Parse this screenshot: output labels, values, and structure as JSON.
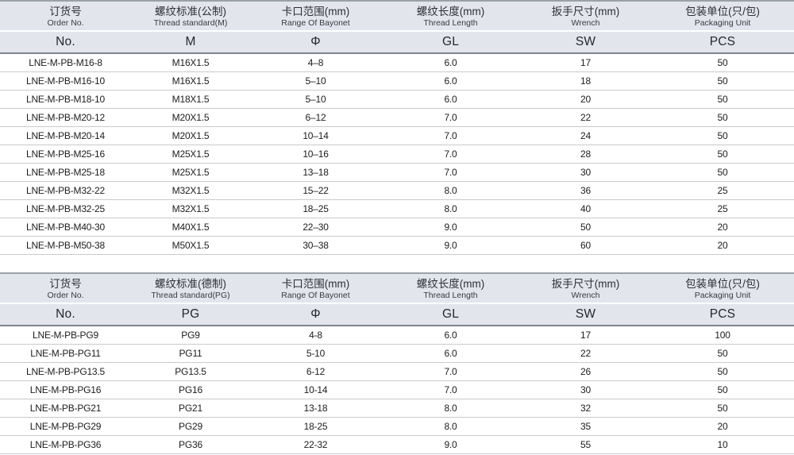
{
  "colors": {
    "header_bg": "#e2e6ec",
    "header_border_top": "#9ba1a9",
    "header_border_bottom": "#7e848c",
    "row_divider": "#c8cace",
    "data_text": "#1c1d1f"
  },
  "tables": [
    {
      "name": "metric-thread-table",
      "columns": [
        {
          "zh": "订货号",
          "en": "Order No.",
          "symbol": "No."
        },
        {
          "zh": "螺纹标准(公制)",
          "en": "Thread standard(M)",
          "symbol": "M"
        },
        {
          "zh": "卡口范围(mm)",
          "en": "Range Of Bayonet",
          "symbol": "Φ"
        },
        {
          "zh": "螺纹长度(mm)",
          "en": "Thread Length",
          "symbol": "GL"
        },
        {
          "zh": "扳手尺寸(mm)",
          "en": "Wrench",
          "symbol": "SW"
        },
        {
          "zh": "包装单位(只/包)",
          "en": "Packaging Unit",
          "symbol": "PCS"
        }
      ],
      "rows": [
        [
          "LNE-M-PB-M16-8",
          "M16X1.5",
          "4–8",
          "6.0",
          "17",
          "50"
        ],
        [
          "LNE-M-PB-M16-10",
          "M16X1.5",
          "5–10",
          "6.0",
          "18",
          "50"
        ],
        [
          "LNE-M-PB-M18-10",
          "M18X1.5",
          "5–10",
          "6.0",
          "20",
          "50"
        ],
        [
          "LNE-M-PB-M20-12",
          "M20X1.5",
          "6–12",
          "7.0",
          "22",
          "50"
        ],
        [
          "LNE-M-PB-M20-14",
          "M20X1.5",
          "10–14",
          "7.0",
          "24",
          "50"
        ],
        [
          "LNE-M-PB-M25-16",
          "M25X1.5",
          "10–16",
          "7.0",
          "28",
          "50"
        ],
        [
          "LNE-M-PB-M25-18",
          "M25X1.5",
          "13–18",
          "7.0",
          "30",
          "50"
        ],
        [
          "LNE-M-PB-M32-22",
          "M32X1.5",
          "15–22",
          "8.0",
          "36",
          "25"
        ],
        [
          "LNE-M-PB-M32-25",
          "M32X1.5",
          "18–25",
          "8.0",
          "40",
          "25"
        ],
        [
          "LNE-M-PB-M40-30",
          "M40X1.5",
          "22–30",
          "9.0",
          "50",
          "20"
        ],
        [
          "LNE-M-PB-M50-38",
          "M50X1.5",
          "30–38",
          "9.0",
          "60",
          "20"
        ]
      ]
    },
    {
      "name": "pg-thread-table",
      "columns": [
        {
          "zh": "订货号",
          "en": "Order No.",
          "symbol": "No."
        },
        {
          "zh": "螺纹标准(德制)",
          "en": "Thread standard(PG)",
          "symbol": "PG"
        },
        {
          "zh": "卡口范围(mm)",
          "en": "Range Of Bayonet",
          "symbol": "Φ"
        },
        {
          "zh": "螺纹长度(mm)",
          "en": "Thread Length",
          "symbol": "GL"
        },
        {
          "zh": "扳手尺寸(mm)",
          "en": "Wrench",
          "symbol": "SW"
        },
        {
          "zh": "包装单位(只/包)",
          "en": "Packaging Unit",
          "symbol": "PCS"
        }
      ],
      "rows": [
        [
          "LNE-M-PB-PG9",
          "PG9",
          "4-8",
          "6.0",
          "17",
          "100"
        ],
        [
          "LNE-M-PB-PG11",
          "PG11",
          "5-10",
          "6.0",
          "22",
          "50"
        ],
        [
          "LNE-M-PB-PG13.5",
          "PG13.5",
          "6-12",
          "7.0",
          "26",
          "50"
        ],
        [
          "LNE-M-PB-PG16",
          "PG16",
          "10-14",
          "7.0",
          "30",
          "50"
        ],
        [
          "LNE-M-PB-PG21",
          "PG21",
          "13-18",
          "8.0",
          "32",
          "50"
        ],
        [
          "LNE-M-PB-PG29",
          "PG29",
          "18-25",
          "8.0",
          "35",
          "20"
        ],
        [
          "LNE-M-PB-PG36",
          "PG36",
          "22-32",
          "9.0",
          "55",
          "10"
        ]
      ]
    }
  ]
}
